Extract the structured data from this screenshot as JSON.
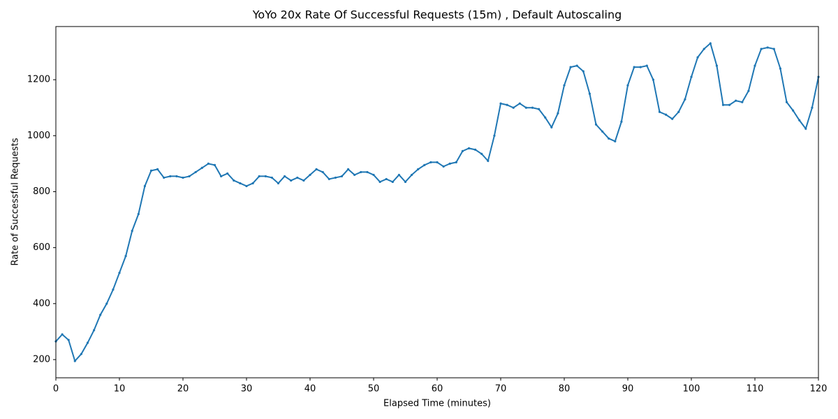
{
  "chart_data": {
    "type": "line",
    "title": "YoYo 20x Rate Of Successful Requests (15m) , Default Autoscaling",
    "x_label": "Elapsed Time (minutes)",
    "y_label": "Rate of Successful Requests",
    "x": [
      0,
      1,
      2,
      3,
      4,
      5,
      6,
      7,
      8,
      9,
      10,
      11,
      12,
      13,
      14,
      15,
      16,
      17,
      18,
      19,
      20,
      21,
      22,
      23,
      24,
      25,
      26,
      27,
      28,
      29,
      30,
      31,
      32,
      33,
      34,
      35,
      36,
      37,
      38,
      39,
      40,
      41,
      42,
      43,
      44,
      45,
      46,
      47,
      48,
      49,
      50,
      51,
      52,
      53,
      54,
      55,
      56,
      57,
      58,
      59,
      60,
      61,
      62,
      63,
      64,
      65,
      66,
      67,
      68,
      69,
      70,
      71,
      72,
      73,
      74,
      75,
      76,
      77,
      78,
      79,
      80,
      81,
      82,
      83,
      84,
      85,
      86,
      87,
      88,
      89,
      90,
      91,
      92,
      93,
      94,
      95,
      96,
      97,
      98,
      99,
      100,
      101,
      102,
      103,
      104,
      105,
      106,
      107,
      108,
      109,
      110,
      111,
      112,
      113,
      114,
      115,
      116,
      117,
      118,
      119,
      120
    ],
    "series": [
      {
        "name": "Rate of Successful Requests",
        "color": "#1f77b4",
        "values": [
          265,
          290,
          270,
          195,
          220,
          260,
          305,
          360,
          400,
          450,
          510,
          570,
          660,
          720,
          820,
          875,
          880,
          850,
          855,
          855,
          850,
          855,
          870,
          885,
          900,
          895,
          855,
          865,
          840,
          830,
          820,
          830,
          855,
          855,
          850,
          830,
          855,
          840,
          850,
          840,
          860,
          880,
          870,
          845,
          850,
          855,
          880,
          860,
          870,
          870,
          860,
          835,
          845,
          835,
          860,
          835,
          860,
          880,
          895,
          905,
          905,
          890,
          900,
          905,
          945,
          955,
          950,
          935,
          910,
          1000,
          1115,
          1110,
          1100,
          1115,
          1100,
          1100,
          1095,
          1065,
          1030,
          1080,
          1180,
          1245,
          1250,
          1230,
          1150,
          1040,
          1015,
          990,
          980,
          1050,
          1180,
          1245,
          1245,
          1250,
          1200,
          1085,
          1075,
          1060,
          1085,
          1130,
          1210,
          1280,
          1310,
          1330,
          1250,
          1110,
          1110,
          1125,
          1120,
          1160,
          1250,
          1310,
          1315,
          1310,
          1240,
          1120,
          1090,
          1055,
          1025,
          1100,
          1210
        ]
      }
    ],
    "xlim": [
      0,
      120
    ],
    "ylim": [
      135,
      1390
    ],
    "xticks": [
      0,
      10,
      20,
      30,
      40,
      50,
      60,
      70,
      80,
      90,
      100,
      110,
      120
    ],
    "yticks": [
      200,
      400,
      600,
      800,
      1000,
      1200
    ],
    "grid": false
  }
}
